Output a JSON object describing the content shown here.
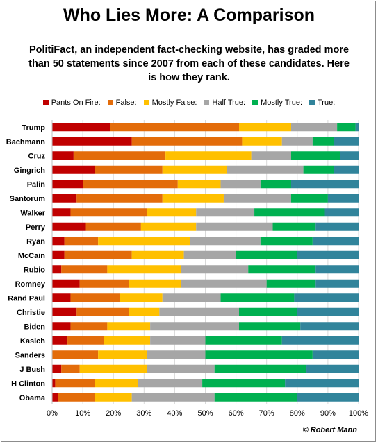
{
  "title": "Who Lies More: A Comparison",
  "subtitle": "PolitiFact, an independent fact-checking website, has graded more than 50 statements since 2007 from each of these candidates. Here is how they rank.",
  "copyright": "© Robert Mann",
  "chart_data": {
    "type": "bar",
    "orientation": "horizontal",
    "stacked": true,
    "categories": [
      "Trump",
      "Bachmann",
      "Cruz",
      "Gingrich",
      "Palin",
      "Santorum",
      "Walker",
      "Perry",
      "Ryan",
      "McCain",
      "Rubio",
      "Romney",
      "Rand Paul",
      "Christie",
      "Biden",
      "Kasich",
      "Sanders",
      "J Bush",
      "H Clinton",
      "Obama"
    ],
    "series": [
      {
        "name": "Pants On Fire:",
        "color": "#c00000",
        "values": [
          19,
          26,
          7,
          14,
          10,
          8,
          6,
          11,
          4,
          4,
          3,
          9,
          6,
          8,
          6,
          5,
          0,
          3,
          1,
          2
        ]
      },
      {
        "name": "False:",
        "color": "#e36c0a",
        "values": [
          42,
          36,
          30,
          22,
          31,
          28,
          25,
          18,
          11,
          22,
          15,
          16,
          16,
          17,
          12,
          12,
          15,
          6,
          13,
          12
        ]
      },
      {
        "name": "Mostly False:",
        "color": "#ffc000",
        "values": [
          17,
          13,
          28,
          21,
          14,
          20,
          16,
          18,
          30,
          17,
          24,
          17,
          14,
          10,
          14,
          15,
          16,
          22,
          14,
          12
        ]
      },
      {
        "name": "Half True:",
        "color": "#a6a6a6",
        "values": [
          15,
          10,
          13,
          25,
          13,
          22,
          19,
          25,
          23,
          17,
          22,
          28,
          19,
          26,
          29,
          18,
          19,
          22,
          21,
          27
        ]
      },
      {
        "name": "Mostly True:",
        "color": "#00b050",
        "values": [
          6,
          7,
          16,
          10,
          10,
          12,
          23,
          14,
          17,
          20,
          22,
          16,
          24,
          19,
          20,
          25,
          35,
          30,
          27,
          27
        ]
      },
      {
        "name": "True:",
        "color": "#31849b",
        "values": [
          1,
          8,
          6,
          8,
          22,
          10,
          11,
          14,
          15,
          20,
          14,
          14,
          21,
          20,
          19,
          25,
          15,
          17,
          24,
          20
        ]
      }
    ],
    "xlim": [
      0,
      100
    ],
    "xticks": [
      "0%",
      "10%",
      "20%",
      "30%",
      "40%",
      "50%",
      "60%",
      "70%",
      "80%",
      "90%",
      "100%"
    ],
    "grid": "vertical",
    "legend": "top"
  }
}
